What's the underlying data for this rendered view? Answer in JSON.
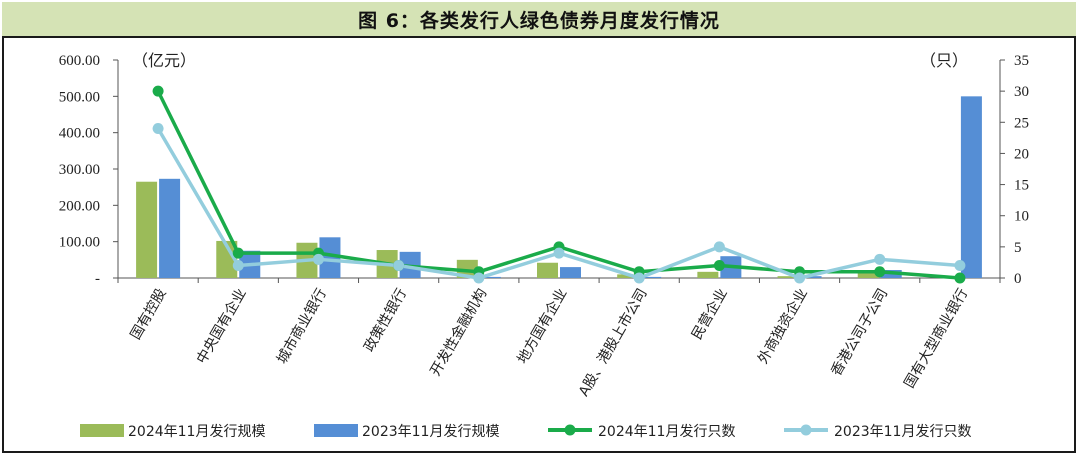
{
  "title": "图 6：各类发行人绿色债券月度发行情况",
  "chart_data": {
    "type": "bar",
    "title": "图 6：各类发行人绿色债券月度发行情况",
    "left_unit": "（亿元）",
    "right_unit": "（只）",
    "categories": [
      "国有控股",
      "中央国有企业",
      "城市商业银行",
      "政策性银行",
      "开发性金融机构",
      "地方国有企业",
      "A股、港股上市公司",
      "民营企业",
      "外商独资企业",
      "香港公司子公司",
      "国有大型商业银行"
    ],
    "left_axis": {
      "min": 0,
      "max": 600,
      "ticks": [
        "-",
        "100.00",
        "200.00",
        "300.00",
        "400.00",
        "500.00",
        "600.00"
      ]
    },
    "right_axis": {
      "min": 0,
      "max": 35,
      "ticks": [
        "0",
        "5",
        "10",
        "15",
        "20",
        "25",
        "30",
        "35"
      ]
    },
    "bar_series": [
      {
        "name": "2024年11月发行规模",
        "color": "#9bbb59",
        "values": [
          265,
          102,
          97,
          77,
          50,
          42,
          10,
          17,
          5,
          20,
          0
        ]
      },
      {
        "name": "2023年11月发行规模",
        "color": "#558ed5",
        "values": [
          273,
          75,
          112,
          72,
          3,
          30,
          3,
          60,
          5,
          22,
          500
        ]
      }
    ],
    "line_series": [
      {
        "name": "2024年11月发行只数",
        "color": "#1aab4a",
        "values": [
          30,
          4,
          4,
          2,
          1,
          5,
          1,
          2,
          1,
          1,
          0
        ]
      },
      {
        "name": "2023年11月发行只数",
        "color": "#93cddd",
        "values": [
          24,
          2,
          3,
          2,
          0,
          4,
          0,
          5,
          0,
          3,
          2
        ]
      }
    ],
    "legend_placement": "bottom",
    "grid": false
  }
}
